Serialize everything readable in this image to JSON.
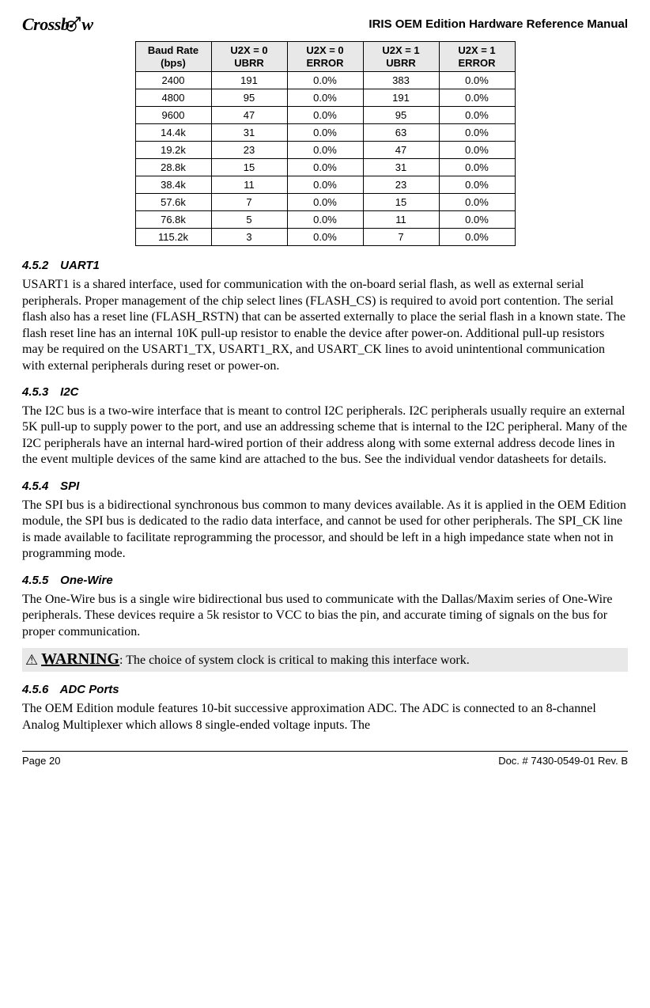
{
  "header": {
    "logo_text": "Crossb",
    "logo_text2": "w",
    "doc_title": "IRIS OEM Edition Hardware Reference Manual"
  },
  "baud_table": {
    "columns": [
      "Baud Rate (bps)",
      "U2X = 0 UBRR",
      "U2X = 0 ERROR",
      "U2X = 1 UBRR",
      "U2X = 1 ERROR"
    ],
    "rows": [
      [
        "2400",
        "191",
        "0.0%",
        "383",
        "0.0%"
      ],
      [
        "4800",
        "95",
        "0.0%",
        "191",
        "0.0%"
      ],
      [
        "9600",
        "47",
        "0.0%",
        "95",
        "0.0%"
      ],
      [
        "14.4k",
        "31",
        "0.0%",
        "63",
        "0.0%"
      ],
      [
        "19.2k",
        "23",
        "0.0%",
        "47",
        "0.0%"
      ],
      [
        "28.8k",
        "15",
        "0.0%",
        "31",
        "0.0%"
      ],
      [
        "38.4k",
        "11",
        "0.0%",
        "23",
        "0.0%"
      ],
      [
        "57.6k",
        "7",
        "0.0%",
        "15",
        "0.0%"
      ],
      [
        "76.8k",
        "5",
        "0.0%",
        "11",
        "0.0%"
      ],
      [
        "115.2k",
        "3",
        "0.0%",
        "7",
        "0.0%"
      ]
    ]
  },
  "sections": {
    "s452": {
      "num": "4.5.2",
      "title": "UART1",
      "body": "USART1 is a shared interface, used for communication with the on-board serial flash, as well as external serial peripherals.  Proper management of the chip select lines (FLASH_CS) is required to avoid port contention.  The serial flash also has a reset line (FLASH_RSTN) that can be asserted externally to place the serial flash in a known state.  The flash reset line has an internal 10K pull-up resistor to enable the device after power-on.  Additional pull-up resistors may be required on the USART1_TX, USART1_RX, and USART_CK lines to avoid unintentional communication with external peripherals during reset or power-on."
    },
    "s453": {
      "num": "4.5.3",
      "title": "I2C",
      "body": "The I2C bus is a two-wire interface that is meant to control I2C peripherals.  I2C peripherals usually require an external 5K pull-up to supply power to the port, and use an addressing scheme that is internal to the I2C peripheral.  Many of the I2C peripherals have an internal hard-wired portion of their address along with some external address decode lines in the event multiple devices of the same kind are attached to the bus.  See the individual vendor datasheets for details."
    },
    "s454": {
      "num": "4.5.4",
      "title": "SPI",
      "body": "The SPI bus is a bidirectional synchronous bus common to many devices available.  As it is applied in the OEM Edition module, the SPI bus is dedicated to the radio data interface, and cannot be used for other peripherals.  The SPI_CK line is made available to facilitate reprogramming the processor, and should be left in a high impedance state when not in programming mode."
    },
    "s455": {
      "num": "4.5.5",
      "title": "One-Wire",
      "body": "The One-Wire bus is a single wire bidirectional bus used to communicate with the Dallas/Maxim series of One-Wire peripherals.  These devices require a 5k resistor to VCC to bias the pin, and accurate timing of signals on the bus for proper communication."
    },
    "s456": {
      "num": "4.5.6",
      "title": "ADC Ports",
      "body": "The OEM Edition module features 10-bit successive approximation ADC. The ADC is connected to an 8-channel Analog Multiplexer which allows 8 single-ended voltage inputs. The"
    }
  },
  "warning": {
    "label": "WARNING",
    "text": ": The choice of system clock is critical to making this interface work."
  },
  "footer": {
    "page": "Page 20",
    "doc": "Doc. # 7430-0549-01 Rev. B"
  }
}
